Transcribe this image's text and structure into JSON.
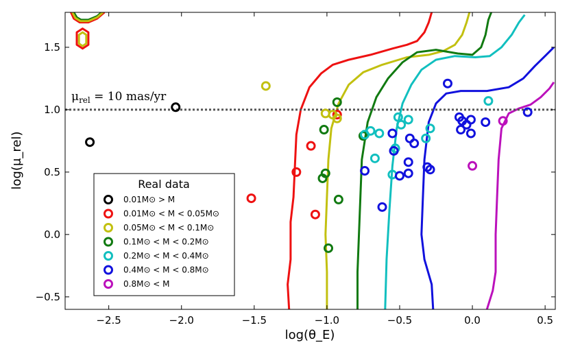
{
  "chart_data": {
    "type": "scatter",
    "title": "",
    "xlabel": "log(θ_E)",
    "ylabel": "log(μ_rel)",
    "xlim": [
      -2.8,
      0.57
    ],
    "ylim": [
      -0.6,
      1.78
    ],
    "x_ticks": [
      -2.5,
      -2.0,
      -1.5,
      -1.0,
      -0.5,
      0.0,
      0.5
    ],
    "x_tick_labels": [
      "−2.5",
      "−2.0",
      "−1.5",
      "−1.0",
      "−0.5",
      "0.0",
      "0.5"
    ],
    "y_ticks": [
      -0.5,
      0.0,
      0.5,
      1.0,
      1.5
    ],
    "y_tick_labels": [
      "−0.5",
      "0.0",
      "0.5",
      "1.0",
      "1.5"
    ],
    "reference_line": {
      "y": 1.0,
      "label": "μ_rel = 10 mas/yr",
      "color": "#555555",
      "style": "dotted"
    },
    "legend": {
      "title": "Real data",
      "position": "lower-left"
    },
    "series": [
      {
        "name": "0.01M⊙ > M",
        "color": "#000000",
        "points": [
          [
            -2.63,
            0.74
          ],
          [
            -2.04,
            1.02
          ]
        ]
      },
      {
        "name": "0.01M⊙ < M < 0.05M⊙",
        "color": "#ee1111",
        "points": [
          [
            -1.52,
            0.29
          ],
          [
            -1.21,
            0.5
          ],
          [
            -1.11,
            0.71
          ],
          [
            -1.08,
            0.16
          ],
          [
            -0.93,
            0.96
          ]
        ]
      },
      {
        "name": "0.05M⊙ < M < 0.1M⊙",
        "color": "#c2c010",
        "points": [
          [
            -1.42,
            1.19
          ],
          [
            -1.01,
            0.97
          ],
          [
            -0.96,
            0.96
          ],
          [
            -0.93,
            0.93
          ]
        ]
      },
      {
        "name": "0.1M⊙ < M < 0.2M⊙",
        "color": "#117a11",
        "points": [
          [
            -0.93,
            1.06
          ],
          [
            -1.02,
            0.84
          ],
          [
            -1.01,
            0.49
          ],
          [
            -1.03,
            0.45
          ],
          [
            -0.99,
            -0.11
          ],
          [
            -0.92,
            0.28
          ],
          [
            -0.75,
            0.79
          ]
        ]
      },
      {
        "name": "0.2M⊙ < M < 0.4M⊙",
        "color": "#11bfbf",
        "points": [
          [
            -0.74,
            0.8
          ],
          [
            -0.7,
            0.83
          ],
          [
            -0.64,
            0.81
          ],
          [
            -0.67,
            0.61
          ],
          [
            -0.55,
            0.48
          ],
          [
            -0.53,
            0.69
          ],
          [
            -0.51,
            0.94
          ],
          [
            -0.49,
            0.88
          ],
          [
            -0.44,
            0.92
          ],
          [
            -0.32,
            0.77
          ],
          [
            -0.29,
            0.85
          ],
          [
            0.11,
            1.07
          ]
        ]
      },
      {
        "name": "0.4M⊙ < M < 0.8M⊙",
        "color": "#1111dd",
        "points": [
          [
            -0.17,
            1.21
          ],
          [
            -0.55,
            0.81
          ],
          [
            -0.54,
            0.67
          ],
          [
            -0.5,
            0.47
          ],
          [
            -0.44,
            0.49
          ],
          [
            -0.44,
            0.58
          ],
          [
            -0.43,
            0.77
          ],
          [
            -0.4,
            0.73
          ],
          [
            -0.31,
            0.54
          ],
          [
            -0.29,
            0.52
          ],
          [
            -0.09,
            0.94
          ],
          [
            -0.07,
            0.91
          ],
          [
            -0.04,
            0.88
          ],
          [
            -0.01,
            0.92
          ],
          [
            -0.01,
            0.81
          ],
          [
            -0.08,
            0.84
          ],
          [
            -0.74,
            0.51
          ],
          [
            -0.62,
            0.22
          ],
          [
            0.09,
            0.9
          ],
          [
            0.38,
            0.98
          ]
        ]
      },
      {
        "name": "0.8M⊙ < M",
        "color": "#bb11bb",
        "points": [
          [
            0.0,
            0.55
          ],
          [
            0.21,
            0.91
          ]
        ]
      }
    ],
    "curves": [
      {
        "color": "#ee1111",
        "points": [
          [
            -1.26,
            -0.6
          ],
          [
            -1.27,
            -0.4
          ],
          [
            -1.25,
            -0.2
          ],
          [
            -1.25,
            0.1
          ],
          [
            -1.23,
            0.3
          ],
          [
            -1.22,
            0.55
          ],
          [
            -1.21,
            0.8
          ],
          [
            -1.18,
            1.0
          ],
          [
            -1.12,
            1.18
          ],
          [
            -1.04,
            1.29
          ],
          [
            -0.96,
            1.36
          ],
          [
            -0.85,
            1.4
          ],
          [
            -0.7,
            1.44
          ],
          [
            -0.55,
            1.49
          ],
          [
            -0.45,
            1.52
          ],
          [
            -0.38,
            1.55
          ],
          [
            -0.33,
            1.62
          ],
          [
            -0.3,
            1.7
          ],
          [
            -0.28,
            1.78
          ]
        ]
      },
      {
        "color": "#c2c010",
        "points": [
          [
            -1.0,
            -0.6
          ],
          [
            -1.0,
            -0.3
          ],
          [
            -1.01,
            0.0
          ],
          [
            -1.0,
            0.3
          ],
          [
            -0.99,
            0.6
          ],
          [
            -0.97,
            0.85
          ],
          [
            -0.92,
            1.05
          ],
          [
            -0.85,
            1.2
          ],
          [
            -0.75,
            1.3
          ],
          [
            -0.62,
            1.36
          ],
          [
            -0.45,
            1.42
          ],
          [
            -0.3,
            1.44
          ],
          [
            -0.2,
            1.47
          ],
          [
            -0.12,
            1.52
          ],
          [
            -0.07,
            1.6
          ],
          [
            -0.04,
            1.7
          ],
          [
            -0.02,
            1.78
          ]
        ]
      },
      {
        "color": "#117a11",
        "points": [
          [
            -0.79,
            -0.6
          ],
          [
            -0.79,
            -0.3
          ],
          [
            -0.78,
            0.0
          ],
          [
            -0.77,
            0.3
          ],
          [
            -0.76,
            0.6
          ],
          [
            -0.72,
            0.9
          ],
          [
            -0.66,
            1.1
          ],
          [
            -0.58,
            1.25
          ],
          [
            -0.48,
            1.38
          ],
          [
            -0.38,
            1.46
          ],
          [
            -0.25,
            1.48
          ],
          [
            -0.1,
            1.45
          ],
          [
            0.0,
            1.44
          ],
          [
            0.06,
            1.5
          ],
          [
            0.09,
            1.6
          ],
          [
            0.11,
            1.72
          ],
          [
            0.13,
            1.78
          ]
        ]
      },
      {
        "color": "#11bfbf",
        "points": [
          [
            -0.6,
            -0.6
          ],
          [
            -0.59,
            -0.2
          ],
          [
            -0.57,
            0.2
          ],
          [
            -0.55,
            0.55
          ],
          [
            -0.52,
            0.85
          ],
          [
            -0.48,
            1.05
          ],
          [
            -0.42,
            1.2
          ],
          [
            -0.35,
            1.32
          ],
          [
            -0.25,
            1.4
          ],
          [
            -0.12,
            1.43
          ],
          [
            0.02,
            1.42
          ],
          [
            0.12,
            1.43
          ],
          [
            0.2,
            1.5
          ],
          [
            0.27,
            1.6
          ],
          [
            0.32,
            1.7
          ],
          [
            0.36,
            1.76
          ]
        ]
      },
      {
        "color": "#1111dd",
        "points": [
          [
            -0.27,
            -0.6
          ],
          [
            -0.28,
            -0.4
          ],
          [
            -0.33,
            -0.2
          ],
          [
            -0.35,
            0.0
          ],
          [
            -0.34,
            0.3
          ],
          [
            -0.33,
            0.6
          ],
          [
            -0.3,
            0.9
          ],
          [
            -0.25,
            1.05
          ],
          [
            -0.18,
            1.13
          ],
          [
            -0.08,
            1.15
          ],
          [
            0.1,
            1.15
          ],
          [
            0.25,
            1.18
          ],
          [
            0.35,
            1.25
          ],
          [
            0.43,
            1.35
          ],
          [
            0.5,
            1.43
          ],
          [
            0.56,
            1.5
          ]
        ]
      },
      {
        "color": "#bb11bb",
        "points": [
          [
            0.1,
            -0.6
          ],
          [
            0.14,
            -0.45
          ],
          [
            0.16,
            -0.3
          ],
          [
            0.16,
            0.0
          ],
          [
            0.17,
            0.3
          ],
          [
            0.18,
            0.6
          ],
          [
            0.2,
            0.85
          ],
          [
            0.25,
            0.97
          ],
          [
            0.32,
            1.01
          ],
          [
            0.4,
            1.04
          ],
          [
            0.47,
            1.1
          ],
          [
            0.53,
            1.17
          ],
          [
            0.56,
            1.22
          ]
        ]
      }
    ],
    "inset_contours": [
      {
        "color": "#ee1111",
        "points": [
          [
            -2.76,
            1.78
          ],
          [
            -2.74,
            1.73
          ],
          [
            -2.7,
            1.7
          ],
          [
            -2.64,
            1.7
          ],
          [
            -2.58,
            1.73
          ],
          [
            -2.53,
            1.78
          ]
        ]
      },
      {
        "color": "#117a11",
        "points": [
          [
            -2.74,
            1.78
          ],
          [
            -2.72,
            1.74
          ],
          [
            -2.69,
            1.72
          ],
          [
            -2.64,
            1.72
          ],
          [
            -2.58,
            1.75
          ],
          [
            -2.55,
            1.78
          ]
        ]
      },
      {
        "color": "#c2c010",
        "points": [
          [
            -2.75,
            1.78
          ],
          [
            -2.73,
            1.735
          ],
          [
            -2.695,
            1.71
          ],
          [
            -2.64,
            1.71
          ],
          [
            -2.58,
            1.74
          ],
          [
            -2.54,
            1.78
          ]
        ]
      },
      {
        "color": "#ee1111",
        "closed": true,
        "points": [
          [
            -2.68,
            1.65
          ],
          [
            -2.64,
            1.62
          ],
          [
            -2.64,
            1.52
          ],
          [
            -2.68,
            1.49
          ],
          [
            -2.72,
            1.52
          ],
          [
            -2.72,
            1.62
          ]
        ]
      },
      {
        "color": "#c2c010",
        "closed": true,
        "points": [
          [
            -2.68,
            1.62
          ],
          [
            -2.655,
            1.6
          ],
          [
            -2.655,
            1.53
          ],
          [
            -2.68,
            1.51
          ],
          [
            -2.705,
            1.53
          ],
          [
            -2.705,
            1.6
          ]
        ]
      }
    ]
  }
}
